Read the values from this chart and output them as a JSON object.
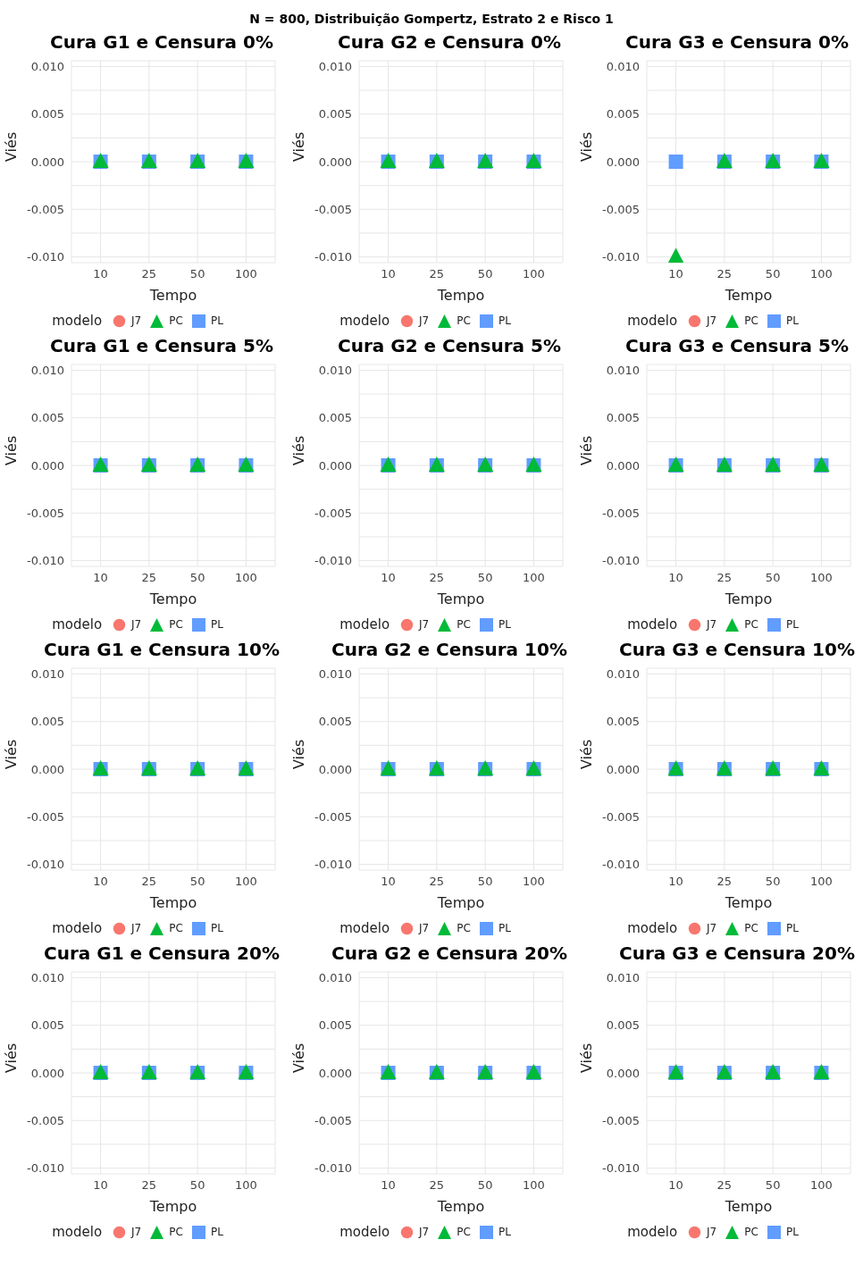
{
  "chart_data": [
    {
      "type": "scatter",
      "title": "Cura G1 e Censura 0%",
      "annotations": [
        "N = 800, Distribuição Gompertz, Estrato 2 e Risco 1"
      ],
      "xlabel": "Tempo",
      "ylabel": "Viés",
      "legend_title": "modelo",
      "legend": "bottom",
      "grid": true,
      "categories": [
        "10",
        "25",
        "50",
        "100"
      ],
      "ylim": [
        -0.0106,
        0.0106
      ],
      "yticks": [
        {
          "value": -0.01,
          "label": "-0.010"
        },
        {
          "value": -0.0075,
          "label": null
        },
        {
          "value": -0.005,
          "label": "-0.005"
        },
        {
          "value": -0.0025,
          "label": null
        },
        {
          "value": 0,
          "label": "0.000"
        },
        {
          "value": 0.0025,
          "label": null
        },
        {
          "value": 0.005,
          "label": "0.005"
        },
        {
          "value": 0.0075,
          "label": null
        },
        {
          "value": 0.01,
          "label": "0.010"
        }
      ],
      "series": [
        {
          "name": "J7",
          "color": "#f8766d",
          "marker": "circle",
          "values": [
            null,
            null,
            null,
            null
          ]
        },
        {
          "name": "PC",
          "color": "#00ba38",
          "marker": "triangle",
          "values": [
            0,
            0,
            0,
            0
          ]
        },
        {
          "name": "PL",
          "color": "#619cff",
          "marker": "square",
          "values": [
            0,
            0,
            0,
            0
          ]
        }
      ]
    },
    {
      "type": "scatter",
      "title": "Cura G2 e Censura 0%",
      "xlabel": "Tempo",
      "ylabel": "Viés",
      "legend_title": "modelo",
      "legend": "bottom",
      "grid": true,
      "categories": [
        "10",
        "25",
        "50",
        "100"
      ],
      "ylim": [
        -0.0106,
        0.0106
      ],
      "yticks": [
        {
          "value": -0.01,
          "label": "-0.010"
        },
        {
          "value": -0.0075,
          "label": null
        },
        {
          "value": -0.005,
          "label": "-0.005"
        },
        {
          "value": -0.0025,
          "label": null
        },
        {
          "value": 0,
          "label": "0.000"
        },
        {
          "value": 0.0025,
          "label": null
        },
        {
          "value": 0.005,
          "label": "0.005"
        },
        {
          "value": 0.0075,
          "label": null
        },
        {
          "value": 0.01,
          "label": "0.010"
        }
      ],
      "series": [
        {
          "name": "J7",
          "color": "#f8766d",
          "marker": "circle",
          "values": [
            null,
            null,
            null,
            null
          ]
        },
        {
          "name": "PC",
          "color": "#00ba38",
          "marker": "triangle",
          "values": [
            0,
            0,
            0,
            0
          ]
        },
        {
          "name": "PL",
          "color": "#619cff",
          "marker": "square",
          "values": [
            0,
            0,
            0,
            0
          ]
        }
      ]
    },
    {
      "type": "scatter",
      "title": "Cura G3 e Censura 0%",
      "xlabel": "Tempo",
      "ylabel": "Viés",
      "legend_title": "modelo",
      "legend": "bottom",
      "grid": true,
      "categories": [
        "10",
        "25",
        "50",
        "100"
      ],
      "ylim": [
        -0.0106,
        0.0106
      ],
      "yticks": [
        {
          "value": -0.01,
          "label": "-0.010"
        },
        {
          "value": -0.0075,
          "label": null
        },
        {
          "value": -0.005,
          "label": "-0.005"
        },
        {
          "value": -0.0025,
          "label": null
        },
        {
          "value": 0,
          "label": "0.000"
        },
        {
          "value": 0.0025,
          "label": null
        },
        {
          "value": 0.005,
          "label": "0.005"
        },
        {
          "value": 0.0075,
          "label": null
        },
        {
          "value": 0.01,
          "label": "0.010"
        }
      ],
      "series": [
        {
          "name": "J7",
          "color": "#f8766d",
          "marker": "circle",
          "values": [
            null,
            null,
            null,
            null
          ]
        },
        {
          "name": "PC",
          "color": "#00ba38",
          "marker": "triangle",
          "values": [
            -0.01,
            0,
            0,
            0
          ]
        },
        {
          "name": "PL",
          "color": "#619cff",
          "marker": "square",
          "values": [
            0,
            0,
            0,
            0
          ]
        }
      ]
    },
    {
      "type": "scatter",
      "title": "Cura G1 e Censura 5%",
      "xlabel": "Tempo",
      "ylabel": "Viés",
      "legend_title": "modelo",
      "legend": "bottom",
      "grid": true,
      "categories": [
        "10",
        "25",
        "50",
        "100"
      ],
      "ylim": [
        -0.0106,
        0.0106
      ],
      "yticks": [
        {
          "value": -0.01,
          "label": "-0.010"
        },
        {
          "value": -0.0075,
          "label": null
        },
        {
          "value": -0.005,
          "label": "-0.005"
        },
        {
          "value": -0.0025,
          "label": null
        },
        {
          "value": 0,
          "label": "0.000"
        },
        {
          "value": 0.0025,
          "label": null
        },
        {
          "value": 0.005,
          "label": "0.005"
        },
        {
          "value": 0.0075,
          "label": null
        },
        {
          "value": 0.01,
          "label": "0.010"
        }
      ],
      "series": [
        {
          "name": "J7",
          "color": "#f8766d",
          "marker": "circle",
          "values": [
            null,
            null,
            null,
            null
          ]
        },
        {
          "name": "PC",
          "color": "#00ba38",
          "marker": "triangle",
          "values": [
            0,
            0,
            0,
            0
          ]
        },
        {
          "name": "PL",
          "color": "#619cff",
          "marker": "square",
          "values": [
            0,
            0,
            0,
            0
          ]
        }
      ]
    },
    {
      "type": "scatter",
      "title": "Cura G2 e Censura 5%",
      "xlabel": "Tempo",
      "ylabel": "Viés",
      "legend_title": "modelo",
      "legend": "bottom",
      "grid": true,
      "categories": [
        "10",
        "25",
        "50",
        "100"
      ],
      "ylim": [
        -0.0106,
        0.0106
      ],
      "yticks": [
        {
          "value": -0.01,
          "label": "-0.010"
        },
        {
          "value": -0.0075,
          "label": null
        },
        {
          "value": -0.005,
          "label": "-0.005"
        },
        {
          "value": -0.0025,
          "label": null
        },
        {
          "value": 0,
          "label": "0.000"
        },
        {
          "value": 0.0025,
          "label": null
        },
        {
          "value": 0.005,
          "label": "0.005"
        },
        {
          "value": 0.0075,
          "label": null
        },
        {
          "value": 0.01,
          "label": "0.010"
        }
      ],
      "series": [
        {
          "name": "J7",
          "color": "#f8766d",
          "marker": "circle",
          "values": [
            null,
            null,
            null,
            null
          ]
        },
        {
          "name": "PC",
          "color": "#00ba38",
          "marker": "triangle",
          "values": [
            0,
            0,
            0,
            0
          ]
        },
        {
          "name": "PL",
          "color": "#619cff",
          "marker": "square",
          "values": [
            0,
            0,
            0,
            0
          ]
        }
      ]
    },
    {
      "type": "scatter",
      "title": "Cura G3 e Censura 5%",
      "xlabel": "Tempo",
      "ylabel": "Viés",
      "legend_title": "modelo",
      "legend": "bottom",
      "grid": true,
      "categories": [
        "10",
        "25",
        "50",
        "100"
      ],
      "ylim": [
        -0.0106,
        0.0106
      ],
      "yticks": [
        {
          "value": -0.01,
          "label": "-0.010"
        },
        {
          "value": -0.0075,
          "label": null
        },
        {
          "value": -0.005,
          "label": "-0.005"
        },
        {
          "value": -0.0025,
          "label": null
        },
        {
          "value": 0,
          "label": "0.000"
        },
        {
          "value": 0.0025,
          "label": null
        },
        {
          "value": 0.005,
          "label": "0.005"
        },
        {
          "value": 0.0075,
          "label": null
        },
        {
          "value": 0.01,
          "label": "0.010"
        }
      ],
      "series": [
        {
          "name": "J7",
          "color": "#f8766d",
          "marker": "circle",
          "values": [
            null,
            null,
            null,
            null
          ]
        },
        {
          "name": "PC",
          "color": "#00ba38",
          "marker": "triangle",
          "values": [
            0,
            0,
            0,
            0
          ]
        },
        {
          "name": "PL",
          "color": "#619cff",
          "marker": "square",
          "values": [
            0,
            0,
            0,
            0
          ]
        }
      ]
    },
    {
      "type": "scatter",
      "title": "Cura G1 e Censura 10%",
      "xlabel": "Tempo",
      "ylabel": "Viés",
      "legend_title": "modelo",
      "legend": "bottom",
      "grid": true,
      "categories": [
        "10",
        "25",
        "50",
        "100"
      ],
      "ylim": [
        -0.0106,
        0.0106
      ],
      "yticks": [
        {
          "value": -0.01,
          "label": "-0.010"
        },
        {
          "value": -0.0075,
          "label": null
        },
        {
          "value": -0.005,
          "label": "-0.005"
        },
        {
          "value": -0.0025,
          "label": null
        },
        {
          "value": 0,
          "label": "0.000"
        },
        {
          "value": 0.0025,
          "label": null
        },
        {
          "value": 0.005,
          "label": "0.005"
        },
        {
          "value": 0.0075,
          "label": null
        },
        {
          "value": 0.01,
          "label": "0.010"
        }
      ],
      "series": [
        {
          "name": "J7",
          "color": "#f8766d",
          "marker": "circle",
          "values": [
            null,
            null,
            null,
            null
          ]
        },
        {
          "name": "PC",
          "color": "#00ba38",
          "marker": "triangle",
          "values": [
            0,
            0,
            0,
            0
          ]
        },
        {
          "name": "PL",
          "color": "#619cff",
          "marker": "square",
          "values": [
            0,
            0,
            0,
            0
          ]
        }
      ]
    },
    {
      "type": "scatter",
      "title": "Cura G2 e Censura 10%",
      "xlabel": "Tempo",
      "ylabel": "Viés",
      "legend_title": "modelo",
      "legend": "bottom",
      "grid": true,
      "categories": [
        "10",
        "25",
        "50",
        "100"
      ],
      "ylim": [
        -0.0106,
        0.0106
      ],
      "yticks": [
        {
          "value": -0.01,
          "label": "-0.010"
        },
        {
          "value": -0.0075,
          "label": null
        },
        {
          "value": -0.005,
          "label": "-0.005"
        },
        {
          "value": -0.0025,
          "label": null
        },
        {
          "value": 0,
          "label": "0.000"
        },
        {
          "value": 0.0025,
          "label": null
        },
        {
          "value": 0.005,
          "label": "0.005"
        },
        {
          "value": 0.0075,
          "label": null
        },
        {
          "value": 0.01,
          "label": "0.010"
        }
      ],
      "series": [
        {
          "name": "J7",
          "color": "#f8766d",
          "marker": "circle",
          "values": [
            null,
            null,
            null,
            null
          ]
        },
        {
          "name": "PC",
          "color": "#00ba38",
          "marker": "triangle",
          "values": [
            0,
            0,
            0,
            0
          ]
        },
        {
          "name": "PL",
          "color": "#619cff",
          "marker": "square",
          "values": [
            0,
            0,
            0,
            0
          ]
        }
      ]
    },
    {
      "type": "scatter",
      "title": "Cura G3 e Censura 10%",
      "xlabel": "Tempo",
      "ylabel": "Viés",
      "legend_title": "modelo",
      "legend": "bottom",
      "grid": true,
      "categories": [
        "10",
        "25",
        "50",
        "100"
      ],
      "ylim": [
        -0.0106,
        0.0106
      ],
      "yticks": [
        {
          "value": -0.01,
          "label": "-0.010"
        },
        {
          "value": -0.0075,
          "label": null
        },
        {
          "value": -0.005,
          "label": "-0.005"
        },
        {
          "value": -0.0025,
          "label": null
        },
        {
          "value": 0,
          "label": "0.000"
        },
        {
          "value": 0.0025,
          "label": null
        },
        {
          "value": 0.005,
          "label": "0.005"
        },
        {
          "value": 0.0075,
          "label": null
        },
        {
          "value": 0.01,
          "label": "0.010"
        }
      ],
      "series": [
        {
          "name": "J7",
          "color": "#f8766d",
          "marker": "circle",
          "values": [
            null,
            null,
            null,
            null
          ]
        },
        {
          "name": "PC",
          "color": "#00ba38",
          "marker": "triangle",
          "values": [
            0,
            0,
            0,
            0
          ]
        },
        {
          "name": "PL",
          "color": "#619cff",
          "marker": "square",
          "values": [
            0,
            0,
            0,
            0
          ]
        }
      ]
    },
    {
      "type": "scatter",
      "title": "Cura G1 e Censura 20%",
      "xlabel": "Tempo",
      "ylabel": "Viés",
      "legend_title": "modelo",
      "legend": "bottom",
      "grid": true,
      "categories": [
        "10",
        "25",
        "50",
        "100"
      ],
      "ylim": [
        -0.0106,
        0.0106
      ],
      "yticks": [
        {
          "value": -0.01,
          "label": "-0.010"
        },
        {
          "value": -0.0075,
          "label": null
        },
        {
          "value": -0.005,
          "label": "-0.005"
        },
        {
          "value": -0.0025,
          "label": null
        },
        {
          "value": 0,
          "label": "0.000"
        },
        {
          "value": 0.0025,
          "label": null
        },
        {
          "value": 0.005,
          "label": "0.005"
        },
        {
          "value": 0.0075,
          "label": null
        },
        {
          "value": 0.01,
          "label": "0.010"
        }
      ],
      "series": [
        {
          "name": "J7",
          "color": "#f8766d",
          "marker": "circle",
          "values": [
            null,
            null,
            null,
            null
          ]
        },
        {
          "name": "PC",
          "color": "#00ba38",
          "marker": "triangle",
          "values": [
            0,
            0,
            0,
            0
          ]
        },
        {
          "name": "PL",
          "color": "#619cff",
          "marker": "square",
          "values": [
            0,
            0,
            0,
            0
          ]
        }
      ]
    },
    {
      "type": "scatter",
      "title": "Cura G2 e Censura 20%",
      "xlabel": "Tempo",
      "ylabel": "Viés",
      "legend_title": "modelo",
      "legend": "bottom",
      "grid": true,
      "categories": [
        "10",
        "25",
        "50",
        "100"
      ],
      "ylim": [
        -0.0106,
        0.0106
      ],
      "yticks": [
        {
          "value": -0.01,
          "label": "-0.010"
        },
        {
          "value": -0.0075,
          "label": null
        },
        {
          "value": -0.005,
          "label": "-0.005"
        },
        {
          "value": -0.0025,
          "label": null
        },
        {
          "value": 0,
          "label": "0.000"
        },
        {
          "value": 0.0025,
          "label": null
        },
        {
          "value": 0.005,
          "label": "0.005"
        },
        {
          "value": 0.0075,
          "label": null
        },
        {
          "value": 0.01,
          "label": "0.010"
        }
      ],
      "series": [
        {
          "name": "J7",
          "color": "#f8766d",
          "marker": "circle",
          "values": [
            null,
            null,
            null,
            null
          ]
        },
        {
          "name": "PC",
          "color": "#00ba38",
          "marker": "triangle",
          "values": [
            0,
            0,
            0,
            0
          ]
        },
        {
          "name": "PL",
          "color": "#619cff",
          "marker": "square",
          "values": [
            0,
            0,
            0,
            0
          ]
        }
      ]
    },
    {
      "type": "scatter",
      "title": "Cura G3 e Censura 20%",
      "xlabel": "Tempo",
      "ylabel": "Viés",
      "legend_title": "modelo",
      "legend": "bottom",
      "grid": true,
      "categories": [
        "10",
        "25",
        "50",
        "100"
      ],
      "ylim": [
        -0.0106,
        0.0106
      ],
      "yticks": [
        {
          "value": -0.01,
          "label": "-0.010"
        },
        {
          "value": -0.0075,
          "label": null
        },
        {
          "value": -0.005,
          "label": "-0.005"
        },
        {
          "value": -0.0025,
          "label": null
        },
        {
          "value": 0,
          "label": "0.000"
        },
        {
          "value": 0.0025,
          "label": null
        },
        {
          "value": 0.005,
          "label": "0.005"
        },
        {
          "value": 0.0075,
          "label": null
        },
        {
          "value": 0.01,
          "label": "0.010"
        }
      ],
      "series": [
        {
          "name": "J7",
          "color": "#f8766d",
          "marker": "circle",
          "values": [
            null,
            null,
            null,
            null
          ]
        },
        {
          "name": "PC",
          "color": "#00ba38",
          "marker": "triangle",
          "values": [
            0,
            0,
            0,
            0
          ]
        },
        {
          "name": "PL",
          "color": "#619cff",
          "marker": "square",
          "values": [
            0,
            0,
            0,
            0
          ]
        }
      ]
    }
  ]
}
